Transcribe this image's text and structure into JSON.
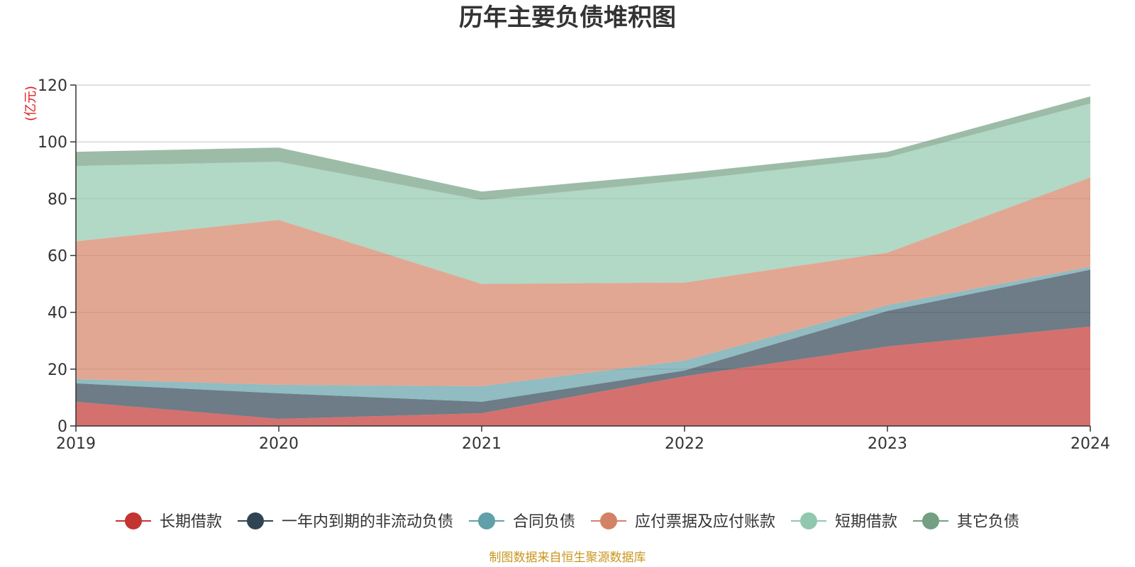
{
  "chart_data": {
    "type": "area",
    "stacked": true,
    "title": "历年主要负债堆积图",
    "unit": "(亿元)",
    "x": [
      "2019",
      "2020",
      "2021",
      "2022",
      "2023",
      "2024"
    ],
    "ylim": [
      0,
      120
    ],
    "yticks": [
      "0",
      "20",
      "40",
      "60",
      "80",
      "100",
      "120"
    ],
    "grid": true,
    "legend_position": "bottom",
    "series": [
      {
        "name": "长期借款",
        "color": "#c23531",
        "values": [
          8.5,
          2.5,
          4.5,
          17.5,
          28.0,
          35.0
        ]
      },
      {
        "name": "一年内到期的非流动负债",
        "color": "#2f4554",
        "values": [
          6.5,
          9.0,
          4.0,
          2.0,
          12.5,
          20.0
        ]
      },
      {
        "name": "合同负债",
        "color": "#61a0a8",
        "values": [
          1.5,
          3.0,
          5.5,
          3.5,
          2.0,
          1.0
        ]
      },
      {
        "name": "应付票据及应付账款",
        "color": "#d48265",
        "values": [
          48.5,
          58.0,
          36.0,
          27.5,
          18.5,
          31.5
        ]
      },
      {
        "name": "短期借款",
        "color": "#91c7ae",
        "values": [
          26.5,
          20.5,
          29.5,
          36.0,
          33.5,
          26.0
        ]
      },
      {
        "name": "其它负债",
        "color": "#749f83",
        "values": [
          5.0,
          5.0,
          3.0,
          2.5,
          2.0,
          2.5
        ]
      }
    ]
  },
  "footer": {
    "source": "制图数据来自恒生聚源数据库"
  }
}
